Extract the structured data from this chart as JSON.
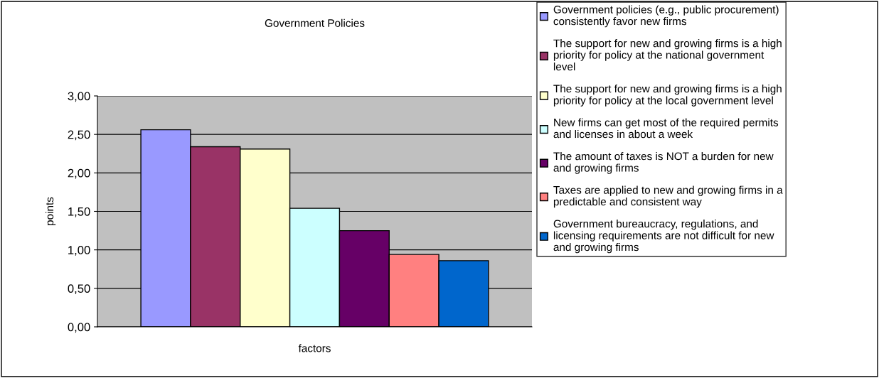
{
  "chart_data": {
    "type": "bar",
    "title": "Government Policies",
    "xlabel": "factors",
    "ylabel": "points",
    "categories": [
      null
    ],
    "ylim": [
      0,
      3
    ],
    "yticks": [
      {
        "value": 0,
        "label": "0,00"
      },
      {
        "value": 0.5,
        "label": "0,50"
      },
      {
        "value": 1,
        "label": "1,00"
      },
      {
        "value": 1.5,
        "label": "1,50"
      },
      {
        "value": 2,
        "label": "2,00"
      },
      {
        "value": 2.5,
        "label": "2,50"
      },
      {
        "value": 3,
        "label": "3,00"
      }
    ],
    "grid": "y",
    "legend": "right",
    "series": [
      {
        "name": "Government policies (e.g., public procurement)\nconsistently favor new firms",
        "color": "#9999ff",
        "values": [
          2.56
        ]
      },
      {
        "name": "The support for new and growing firms is a high\npriority for policy at the national government\nlevel",
        "color": "#993366",
        "values": [
          2.34
        ]
      },
      {
        "name": "The support for new and growing firms is a high\npriority for policy at the local government level",
        "color": "#ffffcc",
        "values": [
          2.31
        ]
      },
      {
        "name": "New firms can get most of the required permits\nand licenses in about a week",
        "color": "#ccffff",
        "values": [
          1.54
        ]
      },
      {
        "name": "The amount of taxes is NOT a burden for new\nand growing firms",
        "color": "#660066",
        "values": [
          1.25
        ]
      },
      {
        "name": "Taxes are applied to new and growing firms in a\npredictable and consistent way",
        "color": "#ff8080",
        "values": [
          0.94
        ]
      },
      {
        "name": "Government bureaucracy, regulations, and\nlicensing requirements are not difficult for new\nand growing firms",
        "color": "#0066cc",
        "values": [
          0.86
        ]
      }
    ]
  }
}
